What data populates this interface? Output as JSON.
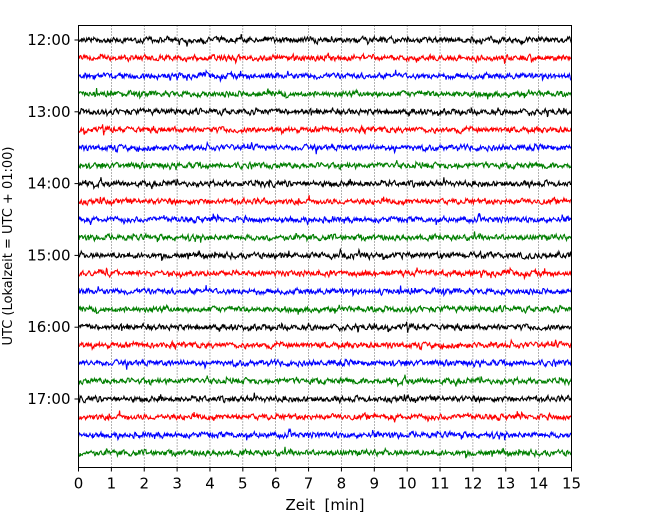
{
  "chart_data": {
    "type": "line",
    "title": "",
    "xlabel": "Zeit  [min]",
    "ylabel": "UTC (Lokalzeit = UTC + 01:00)",
    "xlim": [
      0,
      15
    ],
    "x_ticks": [
      "0",
      "1",
      "2",
      "3",
      "4",
      "5",
      "6",
      "7",
      "8",
      "9",
      "10",
      "11",
      "12",
      "13",
      "14",
      "15"
    ],
    "y_ticks": [
      "12:00",
      "13:00",
      "14:00",
      "15:00",
      "16:00",
      "17:00"
    ],
    "grid": "vertical dotted lines at each minute",
    "legend": "none",
    "line_colors": [
      "#000000",
      "#ff0000",
      "#0000ff",
      "#007f00"
    ],
    "series": [
      {
        "start": "12:00",
        "color": "#000000"
      },
      {
        "start": "12:15",
        "color": "#ff0000"
      },
      {
        "start": "12:30",
        "color": "#0000ff"
      },
      {
        "start": "12:45",
        "color": "#007f00"
      },
      {
        "start": "13:00",
        "color": "#000000"
      },
      {
        "start": "13:15",
        "color": "#ff0000"
      },
      {
        "start": "13:30",
        "color": "#0000ff"
      },
      {
        "start": "13:45",
        "color": "#007f00"
      },
      {
        "start": "14:00",
        "color": "#000000"
      },
      {
        "start": "14:15",
        "color": "#ff0000"
      },
      {
        "start": "14:30",
        "color": "#0000ff"
      },
      {
        "start": "14:45",
        "color": "#007f00"
      },
      {
        "start": "15:00",
        "color": "#000000"
      },
      {
        "start": "15:15",
        "color": "#ff0000"
      },
      {
        "start": "15:30",
        "color": "#0000ff"
      },
      {
        "start": "15:45",
        "color": "#007f00"
      },
      {
        "start": "16:00",
        "color": "#000000"
      },
      {
        "start": "16:15",
        "color": "#ff0000"
      },
      {
        "start": "16:30",
        "color": "#0000ff"
      },
      {
        "start": "16:45",
        "color": "#007f00"
      },
      {
        "start": "17:00",
        "color": "#000000"
      },
      {
        "start": "17:15",
        "color": "#ff0000"
      },
      {
        "start": "17:30",
        "color": "#0000ff"
      },
      {
        "start": "17:45",
        "color": "#007f00"
      }
    ]
  }
}
